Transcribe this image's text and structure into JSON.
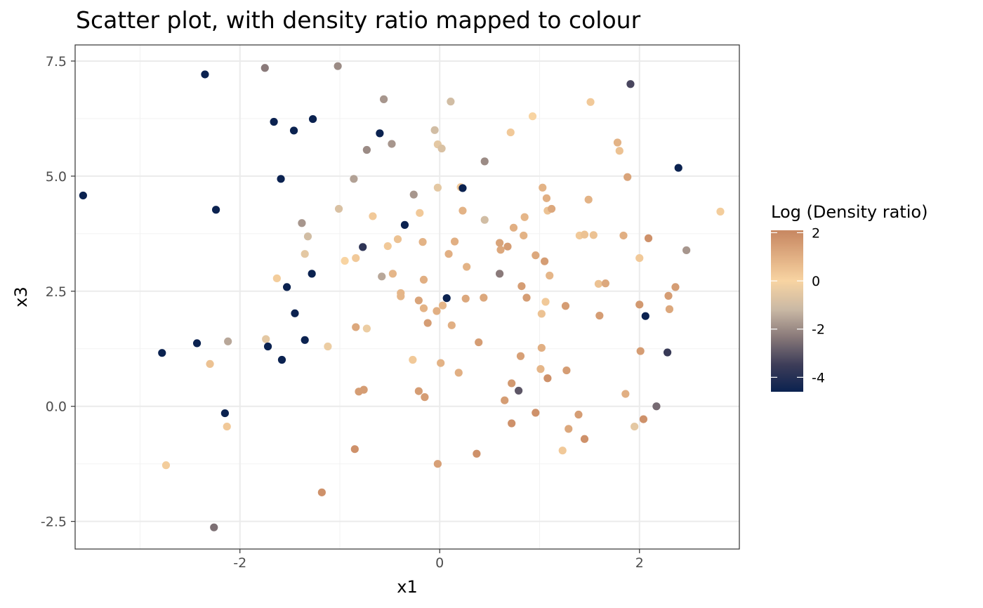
{
  "chart_data": {
    "type": "scatter",
    "title": "Scatter plot, with density ratio mapped to colour",
    "xlabel": "x1",
    "ylabel": "x3",
    "xlim": [
      -3.65,
      3.0
    ],
    "ylim": [
      -3.1,
      7.85
    ],
    "x_ticks": [
      -2,
      0,
      2
    ],
    "x_tick_labels": [
      "-2",
      "0",
      "2"
    ],
    "y_ticks": [
      -2.5,
      0,
      2.5,
      5,
      7.5
    ],
    "y_tick_labels": [
      "-2.5",
      "0.0",
      "2.5",
      "5.0",
      "7.5"
    ],
    "grid": true,
    "legend": {
      "title": "Log (Density ratio)",
      "placement": "right",
      "range": [
        -4.6,
        2.1
      ],
      "ticks": [
        2,
        0,
        -2,
        -4
      ],
      "tick_labels": [
        "2",
        "0",
        "-2",
        "-4"
      ],
      "colors": [
        "#c98a64",
        "#f8d4a2",
        "#c9b8a4",
        "#8a7a7a",
        "#3c3c58",
        "#0b2250"
      ]
    },
    "points": [
      {
        "x": -3.57,
        "y": 4.58,
        "c": -4.6
      },
      {
        "x": -2.78,
        "y": 1.16,
        "c": -4.6
      },
      {
        "x": -2.74,
        "y": -1.28,
        "c": 0.2
      },
      {
        "x": -2.43,
        "y": 1.37,
        "c": -4.6
      },
      {
        "x": -2.35,
        "y": 7.21,
        "c": -4.6
      },
      {
        "x": -2.3,
        "y": 0.92,
        "c": 0.5
      },
      {
        "x": -2.26,
        "y": -2.63,
        "c": -2.5
      },
      {
        "x": -2.24,
        "y": 4.27,
        "c": -4.6
      },
      {
        "x": -2.15,
        "y": -0.15,
        "c": -4.6
      },
      {
        "x": -2.13,
        "y": -0.44,
        "c": 0.3
      },
      {
        "x": -2.12,
        "y": 1.41,
        "c": -1.5
      },
      {
        "x": -1.75,
        "y": 7.35,
        "c": -2.3
      },
      {
        "x": -1.74,
        "y": 1.46,
        "c": -0.5
      },
      {
        "x": -1.72,
        "y": 1.3,
        "c": -4.6
      },
      {
        "x": -1.66,
        "y": 6.18,
        "c": -4.6
      },
      {
        "x": -1.63,
        "y": 2.78,
        "c": 0.2
      },
      {
        "x": -1.59,
        "y": 4.94,
        "c": -4.6
      },
      {
        "x": -1.58,
        "y": 1.01,
        "c": -4.6
      },
      {
        "x": -1.53,
        "y": 2.59,
        "c": -4.6
      },
      {
        "x": -1.46,
        "y": 5.99,
        "c": -4.6
      },
      {
        "x": -1.45,
        "y": 2.02,
        "c": -4.6
      },
      {
        "x": -1.38,
        "y": 3.98,
        "c": -1.8
      },
      {
        "x": -1.35,
        "y": 3.31,
        "c": -0.5
      },
      {
        "x": -1.35,
        "y": 1.44,
        "c": -4.6
      },
      {
        "x": -1.32,
        "y": 3.69,
        "c": -1.0
      },
      {
        "x": -1.28,
        "y": 2.88,
        "c": -4.6
      },
      {
        "x": -1.27,
        "y": 6.24,
        "c": -4.6
      },
      {
        "x": -1.18,
        "y": -1.87,
        "c": 1.8
      },
      {
        "x": -1.12,
        "y": 1.3,
        "c": -0.3
      },
      {
        "x": -1.02,
        "y": 7.39,
        "c": -2.0
      },
      {
        "x": -1.01,
        "y": 4.29,
        "c": -0.8
      },
      {
        "x": -0.95,
        "y": 3.16,
        "c": 0.0
      },
      {
        "x": -0.86,
        "y": 4.94,
        "c": -1.6
      },
      {
        "x": -0.85,
        "y": -0.93,
        "c": 1.8
      },
      {
        "x": -0.84,
        "y": 3.22,
        "c": 0.3
      },
      {
        "x": -0.84,
        "y": 1.72,
        "c": 1.2
      },
      {
        "x": -0.81,
        "y": 0.32,
        "c": 1.5
      },
      {
        "x": -0.77,
        "y": 3.46,
        "c": -3.8
      },
      {
        "x": -0.76,
        "y": 0.36,
        "c": 1.5
      },
      {
        "x": -0.73,
        "y": 5.57,
        "c": -2.0
      },
      {
        "x": -0.73,
        "y": 1.69,
        "c": -0.3
      },
      {
        "x": -0.67,
        "y": 4.13,
        "c": 0.3
      },
      {
        "x": -0.6,
        "y": 5.93,
        "c": -4.6
      },
      {
        "x": -0.58,
        "y": 2.82,
        "c": -1.5
      },
      {
        "x": -0.56,
        "y": 6.67,
        "c": -1.8
      },
      {
        "x": -0.52,
        "y": 3.48,
        "c": 0.3
      },
      {
        "x": -0.48,
        "y": 5.7,
        "c": -1.8
      },
      {
        "x": -0.47,
        "y": 2.88,
        "c": 0.8
      },
      {
        "x": -0.42,
        "y": 3.63,
        "c": 0.5
      },
      {
        "x": -0.39,
        "y": 2.46,
        "c": 0.8
      },
      {
        "x": -0.39,
        "y": 2.39,
        "c": 0.8
      },
      {
        "x": -0.35,
        "y": 3.94,
        "c": -4.6
      },
      {
        "x": -0.27,
        "y": 1.01,
        "c": 0.3
      },
      {
        "x": -0.26,
        "y": 4.6,
        "c": -1.8
      },
      {
        "x": -0.21,
        "y": 2.3,
        "c": 1.3
      },
      {
        "x": -0.21,
        "y": 0.33,
        "c": 1.5
      },
      {
        "x": -0.2,
        "y": 4.2,
        "c": 0.3
      },
      {
        "x": -0.17,
        "y": 3.57,
        "c": 0.9
      },
      {
        "x": -0.16,
        "y": 2.13,
        "c": 0.9
      },
      {
        "x": -0.16,
        "y": 2.75,
        "c": 1.0
      },
      {
        "x": -0.15,
        "y": 0.2,
        "c": 1.5
      },
      {
        "x": -0.12,
        "y": 1.81,
        "c": 1.5
      },
      {
        "x": -0.05,
        "y": 6.0,
        "c": -1.0
      },
      {
        "x": -0.03,
        "y": 2.07,
        "c": 1.0
      },
      {
        "x": -0.02,
        "y": 4.75,
        "c": -0.5
      },
      {
        "x": -0.02,
        "y": -1.25,
        "c": 1.4
      },
      {
        "x": -0.02,
        "y": 5.69,
        "c": -0.5
      },
      {
        "x": 0.01,
        "y": 0.94,
        "c": 0.9
      },
      {
        "x": 0.02,
        "y": 5.6,
        "c": -0.8
      },
      {
        "x": 0.03,
        "y": 2.19,
        "c": 0.8
      },
      {
        "x": 0.07,
        "y": 2.35,
        "c": -4.6
      },
      {
        "x": 0.09,
        "y": 3.31,
        "c": 1.0
      },
      {
        "x": 0.11,
        "y": 6.62,
        "c": -1.0
      },
      {
        "x": 0.12,
        "y": 1.76,
        "c": 1.0
      },
      {
        "x": 0.15,
        "y": 3.58,
        "c": 1.0
      },
      {
        "x": 0.19,
        "y": 0.73,
        "c": 1.0
      },
      {
        "x": 0.21,
        "y": 4.76,
        "c": 0.3
      },
      {
        "x": 0.23,
        "y": 4.74,
        "c": -4.6
      },
      {
        "x": 0.23,
        "y": 4.25,
        "c": 0.9
      },
      {
        "x": 0.26,
        "y": 2.34,
        "c": 1.2
      },
      {
        "x": 0.27,
        "y": 3.03,
        "c": 0.9
      },
      {
        "x": 0.37,
        "y": -1.03,
        "c": 1.8
      },
      {
        "x": 0.39,
        "y": 1.39,
        "c": 1.5
      },
      {
        "x": 0.44,
        "y": 2.36,
        "c": 1.2
      },
      {
        "x": 0.45,
        "y": 4.05,
        "c": -1.0
      },
      {
        "x": 0.45,
        "y": 5.32,
        "c": -2.0
      },
      {
        "x": 0.6,
        "y": 3.55,
        "c": 1.3
      },
      {
        "x": 0.6,
        "y": 2.88,
        "c": -2.3
      },
      {
        "x": 0.61,
        "y": 3.4,
        "c": 1.2
      },
      {
        "x": 0.65,
        "y": 0.13,
        "c": 1.5
      },
      {
        "x": 0.68,
        "y": 3.47,
        "c": 1.5
      },
      {
        "x": 0.71,
        "y": 5.95,
        "c": 0.3
      },
      {
        "x": 0.72,
        "y": -0.37,
        "c": 1.8
      },
      {
        "x": 0.72,
        "y": 0.5,
        "c": 1.6
      },
      {
        "x": 0.74,
        "y": 3.88,
        "c": 1.0
      },
      {
        "x": 0.79,
        "y": 0.34,
        "c": -3.0
      },
      {
        "x": 0.81,
        "y": 1.09,
        "c": 1.4
      },
      {
        "x": 0.82,
        "y": 2.61,
        "c": 1.5
      },
      {
        "x": 0.84,
        "y": 3.71,
        "c": 0.9
      },
      {
        "x": 0.85,
        "y": 4.11,
        "c": 0.8
      },
      {
        "x": 0.87,
        "y": 2.36,
        "c": 1.5
      },
      {
        "x": 0.93,
        "y": 6.3,
        "c": 0.0
      },
      {
        "x": 0.96,
        "y": 3.28,
        "c": 1.2
      },
      {
        "x": 0.96,
        "y": -0.14,
        "c": 1.8
      },
      {
        "x": 1.01,
        "y": 0.81,
        "c": 0.8
      },
      {
        "x": 1.02,
        "y": 2.01,
        "c": 0.5
      },
      {
        "x": 1.02,
        "y": 1.27,
        "c": 1.0
      },
      {
        "x": 1.03,
        "y": 4.75,
        "c": 0.9
      },
      {
        "x": 1.05,
        "y": 3.15,
        "c": 1.5
      },
      {
        "x": 1.06,
        "y": 2.27,
        "c": 0.3
      },
      {
        "x": 1.07,
        "y": 4.52,
        "c": 1.0
      },
      {
        "x": 1.08,
        "y": 4.25,
        "c": 0.5
      },
      {
        "x": 1.08,
        "y": 0.61,
        "c": 1.8
      },
      {
        "x": 1.1,
        "y": 2.84,
        "c": 0.8
      },
      {
        "x": 1.12,
        "y": 4.29,
        "c": 1.2
      },
      {
        "x": 1.23,
        "y": -0.96,
        "c": 0.3
      },
      {
        "x": 1.26,
        "y": 2.18,
        "c": 1.5
      },
      {
        "x": 1.27,
        "y": 0.78,
        "c": 1.5
      },
      {
        "x": 1.29,
        "y": -0.49,
        "c": 1.2
      },
      {
        "x": 1.39,
        "y": -0.18,
        "c": 1.5
      },
      {
        "x": 1.4,
        "y": 3.71,
        "c": 0.3
      },
      {
        "x": 1.45,
        "y": 3.73,
        "c": 0.5
      },
      {
        "x": 1.45,
        "y": -0.71,
        "c": 1.8
      },
      {
        "x": 1.49,
        "y": 4.49,
        "c": 0.9
      },
      {
        "x": 1.51,
        "y": 6.61,
        "c": 0.3
      },
      {
        "x": 1.54,
        "y": 3.72,
        "c": 0.5
      },
      {
        "x": 1.59,
        "y": 2.66,
        "c": 0.5
      },
      {
        "x": 1.6,
        "y": 1.97,
        "c": 1.5
      },
      {
        "x": 1.66,
        "y": 2.67,
        "c": 1.2
      },
      {
        "x": 1.78,
        "y": 5.73,
        "c": 0.9
      },
      {
        "x": 1.8,
        "y": 5.55,
        "c": 0.5
      },
      {
        "x": 1.84,
        "y": 3.71,
        "c": 1.0
      },
      {
        "x": 1.86,
        "y": 0.27,
        "c": 1.0
      },
      {
        "x": 1.88,
        "y": 4.98,
        "c": 1.3
      },
      {
        "x": 1.91,
        "y": 7.0,
        "c": -3.3
      },
      {
        "x": 1.95,
        "y": -0.44,
        "c": -0.5
      },
      {
        "x": 2.0,
        "y": 2.21,
        "c": 1.6
      },
      {
        "x": 2.0,
        "y": 3.22,
        "c": 0.3
      },
      {
        "x": 2.01,
        "y": 1.2,
        "c": 1.5
      },
      {
        "x": 2.04,
        "y": -0.28,
        "c": 1.8
      },
      {
        "x": 2.06,
        "y": 1.96,
        "c": -4.6
      },
      {
        "x": 2.09,
        "y": 3.65,
        "c": 1.8
      },
      {
        "x": 2.17,
        "y": 0.0,
        "c": -2.6
      },
      {
        "x": 2.28,
        "y": 1.17,
        "c": -3.6
      },
      {
        "x": 2.29,
        "y": 2.4,
        "c": 1.5
      },
      {
        "x": 2.3,
        "y": 2.11,
        "c": 1.2
      },
      {
        "x": 2.36,
        "y": 2.59,
        "c": 1.5
      },
      {
        "x": 2.39,
        "y": 5.18,
        "c": -4.6
      },
      {
        "x": 2.47,
        "y": 3.39,
        "c": -1.8
      },
      {
        "x": 2.81,
        "y": 4.23,
        "c": 0.2
      }
    ]
  }
}
